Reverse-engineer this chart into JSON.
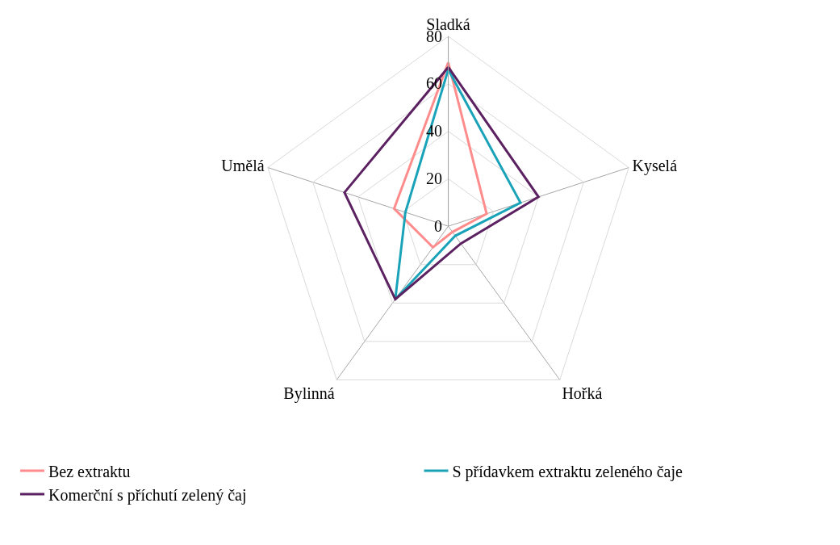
{
  "chart_data": {
    "type": "radar",
    "categories": [
      "Sladká",
      "Kyselá",
      "Hořká",
      "Bylinná",
      "Umělá"
    ],
    "ylim": [
      0,
      80
    ],
    "yticks": [
      0,
      20,
      40,
      60,
      80
    ],
    "grid": true,
    "legend": "bottom",
    "series": [
      {
        "name": "Bez extraktu",
        "color": "#ff8c8c",
        "values": [
          69,
          17,
          3,
          11,
          24
        ]
      },
      {
        "name": "S přídavkem extraktu zeleného čaje",
        "color": "#1aa3b8",
        "values": [
          66,
          32,
          5,
          38,
          19
        ]
      },
      {
        "name": "Komerční s příchutí zelený čaj",
        "color": "#5b2161",
        "values": [
          67,
          40,
          9,
          38,
          46
        ]
      }
    ]
  }
}
